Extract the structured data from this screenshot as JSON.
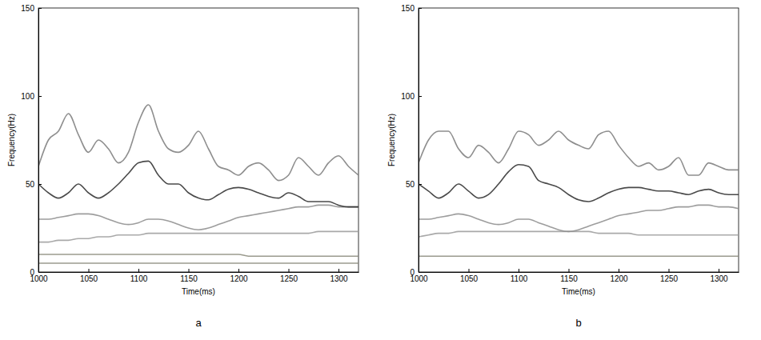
{
  "chart_data": [
    {
      "type": "line",
      "title": "a",
      "x_label": "Time(ms)",
      "y_label": "Frequency(Hz)",
      "xlim": [
        1000,
        1320
      ],
      "xticks": [
        1000,
        1050,
        1100,
        1150,
        1200,
        1250,
        1300
      ],
      "ylim": [
        0,
        150
      ],
      "yticks": [
        0,
        50,
        100,
        150
      ],
      "grid": false,
      "x": [
        1000,
        1010,
        1020,
        1030,
        1040,
        1050,
        1060,
        1070,
        1080,
        1090,
        1100,
        1110,
        1120,
        1130,
        1140,
        1150,
        1160,
        1170,
        1180,
        1190,
        1200,
        1210,
        1220,
        1230,
        1240,
        1250,
        1260,
        1270,
        1280,
        1290,
        1300,
        1310,
        1320
      ],
      "series": [
        {
          "color": "#8a8a7a",
          "values": [
            5,
            5,
            5,
            5,
            5,
            5,
            5,
            5,
            5,
            5,
            5,
            5,
            5,
            5,
            5,
            5,
            5,
            5,
            5,
            5,
            5,
            5,
            5,
            5,
            5,
            5,
            5,
            5,
            5,
            5,
            5,
            5,
            5
          ]
        },
        {
          "color": "#8a8a7a",
          "values": [
            10,
            10,
            10,
            10,
            10,
            10,
            10,
            10,
            10,
            10,
            10,
            10,
            10,
            10,
            10,
            10,
            10,
            10,
            10,
            10,
            10,
            9,
            9,
            9,
            9,
            9,
            9,
            9,
            9,
            9,
            9,
            9,
            9
          ]
        },
        {
          "color": "#9a9a9a",
          "values": [
            17,
            17,
            18,
            18,
            19,
            19,
            20,
            20,
            21,
            21,
            21,
            22,
            22,
            22,
            22,
            22,
            22,
            22,
            22,
            22,
            22,
            22,
            22,
            22,
            22,
            22,
            22,
            22,
            23,
            23,
            23,
            23,
            23
          ]
        },
        {
          "color": "#8c8c8c",
          "values": [
            30,
            30,
            31,
            32,
            33,
            33,
            32,
            30,
            28,
            27,
            28,
            30,
            30,
            29,
            27,
            25,
            24,
            25,
            27,
            29,
            31,
            32,
            33,
            34,
            35,
            36,
            37,
            37,
            38,
            38,
            37,
            37,
            37
          ]
        },
        {
          "color": "#2a2a2a",
          "values": [
            50,
            45,
            42,
            45,
            50,
            45,
            42,
            45,
            50,
            56,
            62,
            63,
            55,
            50,
            50,
            45,
            42,
            41,
            44,
            47,
            48,
            47,
            45,
            43,
            42,
            45,
            43,
            40,
            40,
            40,
            38,
            37,
            37
          ]
        },
        {
          "color": "#7a7a7a",
          "values": [
            60,
            75,
            80,
            90,
            78,
            68,
            75,
            70,
            62,
            68,
            85,
            95,
            80,
            70,
            68,
            72,
            80,
            70,
            60,
            58,
            55,
            60,
            62,
            58,
            52,
            55,
            65,
            60,
            55,
            62,
            66,
            60,
            55
          ]
        }
      ]
    },
    {
      "type": "line",
      "title": "b",
      "x_label": "Time(ms)",
      "y_label": "Frequency(Hz)",
      "xlim": [
        1000,
        1320
      ],
      "xticks": [
        1000,
        1050,
        1100,
        1150,
        1200,
        1250,
        1300
      ],
      "ylim": [
        0,
        150
      ],
      "yticks": [
        0,
        50,
        100,
        150
      ],
      "grid": false,
      "x": [
        1000,
        1010,
        1020,
        1030,
        1040,
        1050,
        1060,
        1070,
        1080,
        1090,
        1100,
        1110,
        1120,
        1130,
        1140,
        1150,
        1160,
        1170,
        1180,
        1190,
        1200,
        1210,
        1220,
        1230,
        1240,
        1250,
        1260,
        1270,
        1280,
        1290,
        1300,
        1310,
        1320
      ],
      "series": [
        {
          "color": "#8a8a7a",
          "values": [
            9,
            9,
            9,
            9,
            9,
            9,
            9,
            9,
            9,
            9,
            9,
            9,
            9,
            9,
            9,
            9,
            9,
            9,
            9,
            9,
            9,
            9,
            9,
            9,
            9,
            9,
            9,
            9,
            9,
            9,
            9,
            9,
            9
          ]
        },
        {
          "color": "#9a9a9a",
          "values": [
            20,
            21,
            22,
            22,
            23,
            23,
            23,
            23,
            23,
            23,
            23,
            23,
            23,
            23,
            23,
            23,
            23,
            23,
            22,
            22,
            22,
            22,
            21,
            21,
            21,
            21,
            21,
            21,
            21,
            21,
            21,
            21,
            21
          ]
        },
        {
          "color": "#8c8c8c",
          "values": [
            30,
            30,
            31,
            32,
            33,
            32,
            30,
            28,
            27,
            28,
            30,
            30,
            28,
            26,
            24,
            23,
            24,
            26,
            28,
            30,
            32,
            33,
            34,
            35,
            35,
            36,
            37,
            37,
            38,
            38,
            37,
            37,
            36
          ]
        },
        {
          "color": "#2a2a2a",
          "values": [
            50,
            46,
            42,
            45,
            50,
            46,
            42,
            44,
            50,
            57,
            61,
            60,
            52,
            50,
            48,
            44,
            41,
            40,
            42,
            45,
            47,
            48,
            48,
            47,
            46,
            46,
            45,
            44,
            46,
            47,
            45,
            44,
            44
          ]
        },
        {
          "color": "#7a7a7a",
          "values": [
            62,
            75,
            80,
            80,
            70,
            65,
            72,
            68,
            62,
            70,
            80,
            78,
            72,
            75,
            80,
            75,
            72,
            70,
            78,
            80,
            72,
            65,
            60,
            62,
            58,
            60,
            65,
            55,
            55,
            62,
            60,
            58,
            58
          ]
        }
      ]
    }
  ]
}
